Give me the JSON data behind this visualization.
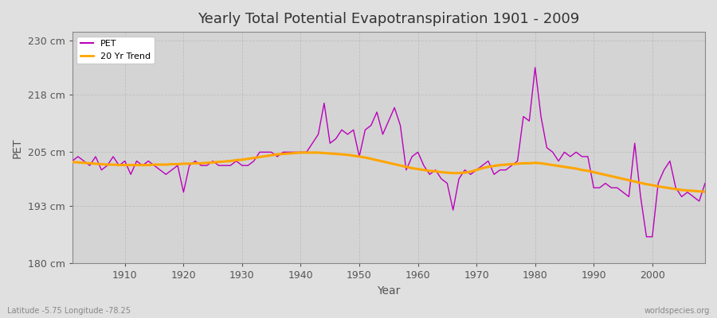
{
  "title": "Yearly Total Potential Evapotranspiration 1901 - 2009",
  "xlabel": "Year",
  "ylabel": "PET",
  "bottom_left_label": "Latitude -5.75 Longitude -78.25",
  "bottom_right_label": "worldspecies.org",
  "bg_color": "#e0e0e0",
  "plot_bg_color": "#d4d4d4",
  "pet_color": "#bb00bb",
  "trend_color": "#ffa500",
  "ylim": [
    180,
    232
  ],
  "yticks": [
    180,
    193,
    205,
    218,
    230
  ],
  "ytick_labels": [
    "180 cm",
    "193 cm",
    "205 cm",
    "218 cm",
    "230 cm"
  ],
  "xlim": [
    1901,
    2009
  ],
  "xticks": [
    1910,
    1920,
    1930,
    1940,
    1950,
    1960,
    1970,
    1980,
    1990,
    2000
  ],
  "years": [
    1901,
    1902,
    1903,
    1904,
    1905,
    1906,
    1907,
    1908,
    1909,
    1910,
    1911,
    1912,
    1913,
    1914,
    1915,
    1916,
    1917,
    1918,
    1919,
    1920,
    1921,
    1922,
    1923,
    1924,
    1925,
    1926,
    1927,
    1928,
    1929,
    1930,
    1931,
    1932,
    1933,
    1934,
    1935,
    1936,
    1937,
    1938,
    1939,
    1940,
    1941,
    1942,
    1943,
    1944,
    1945,
    1946,
    1947,
    1948,
    1949,
    1950,
    1951,
    1952,
    1953,
    1954,
    1955,
    1956,
    1957,
    1958,
    1959,
    1960,
    1961,
    1962,
    1963,
    1964,
    1965,
    1966,
    1967,
    1968,
    1969,
    1970,
    1971,
    1972,
    1973,
    1974,
    1975,
    1976,
    1977,
    1978,
    1979,
    1980,
    1981,
    1982,
    1983,
    1984,
    1985,
    1986,
    1987,
    1988,
    1989,
    1990,
    1991,
    1992,
    1993,
    1994,
    1995,
    1996,
    1997,
    1998,
    1999,
    2000,
    2001,
    2002,
    2003,
    2004,
    2005,
    2006,
    2007,
    2008,
    2009
  ],
  "pet_values": [
    203,
    204,
    203,
    202,
    204,
    201,
    202,
    204,
    202,
    203,
    200,
    203,
    202,
    203,
    202,
    201,
    200,
    201,
    202,
    196,
    202,
    203,
    202,
    202,
    203,
    202,
    202,
    202,
    203,
    202,
    202,
    203,
    205,
    205,
    205,
    204,
    205,
    205,
    205,
    205,
    205,
    207,
    209,
    216,
    207,
    208,
    210,
    209,
    210,
    204,
    210,
    211,
    214,
    209,
    212,
    215,
    211,
    201,
    204,
    205,
    202,
    200,
    201,
    199,
    198,
    192,
    199,
    201,
    200,
    201,
    202,
    203,
    200,
    201,
    201,
    202,
    203,
    213,
    212,
    224,
    213,
    206,
    205,
    203,
    205,
    204,
    205,
    204,
    204,
    197,
    197,
    198,
    197,
    197,
    196,
    195,
    207,
    195,
    186,
    186,
    198,
    201,
    203,
    197,
    195,
    196,
    195,
    194,
    198
  ],
  "trend_values": [
    202.8,
    202.7,
    202.6,
    202.5,
    202.4,
    202.3,
    202.2,
    202.2,
    202.1,
    202.1,
    202.1,
    202.1,
    202.1,
    202.1,
    202.2,
    202.2,
    202.2,
    202.3,
    202.3,
    202.4,
    202.4,
    202.5,
    202.5,
    202.6,
    202.7,
    202.8,
    202.9,
    203.0,
    203.2,
    203.3,
    203.5,
    203.7,
    203.9,
    204.1,
    204.3,
    204.5,
    204.6,
    204.7,
    204.8,
    204.9,
    204.9,
    204.9,
    204.9,
    204.8,
    204.7,
    204.6,
    204.5,
    204.4,
    204.2,
    204.0,
    203.8,
    203.5,
    203.2,
    202.9,
    202.6,
    202.3,
    202.0,
    201.7,
    201.4,
    201.2,
    201.0,
    200.8,
    200.7,
    200.5,
    200.4,
    200.3,
    200.3,
    200.4,
    200.6,
    201.0,
    201.4,
    201.7,
    201.9,
    202.1,
    202.2,
    202.3,
    202.4,
    202.5,
    202.5,
    202.6,
    202.5,
    202.3,
    202.1,
    201.9,
    201.7,
    201.5,
    201.3,
    201.0,
    200.8,
    200.5,
    200.2,
    199.9,
    199.6,
    199.3,
    199.0,
    198.7,
    198.4,
    198.1,
    197.8,
    197.6,
    197.3,
    197.1,
    196.9,
    196.7,
    196.5,
    196.4,
    196.3,
    196.2,
    196.1
  ]
}
